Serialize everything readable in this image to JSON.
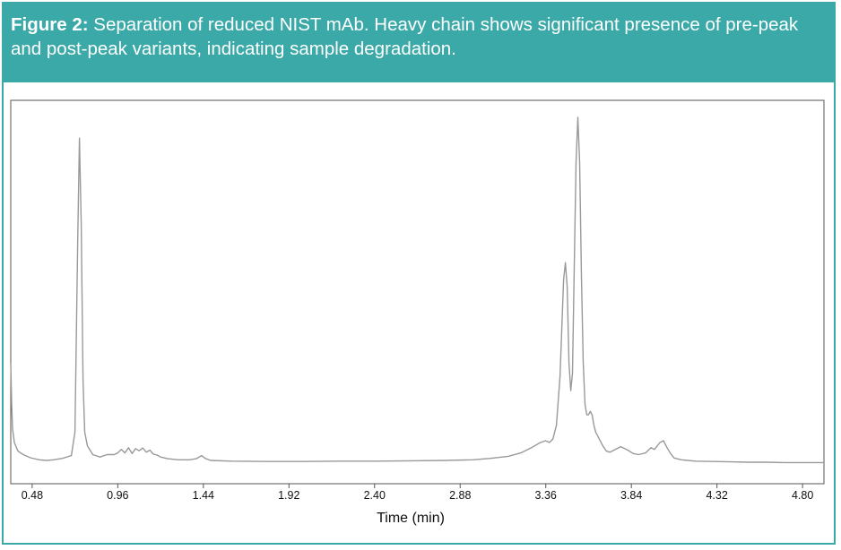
{
  "caption": {
    "label": "Figure 2:",
    "text": "Separation of reduced NIST mAb. Heavy chain shows significant presence of pre-peak and post-peak variants, indicating sample degradation."
  },
  "colors": {
    "accent": "#3aa9a8",
    "trace": "#999999",
    "axis": "#555555",
    "text": "#111111"
  },
  "chart_data": {
    "type": "line",
    "title": "",
    "xlabel": "Time (min)",
    "ylabel": "",
    "xlim": [
      0.36,
      4.92
    ],
    "ylim": [
      0,
      100
    ],
    "grid": false,
    "xticks": [
      0.48,
      0.96,
      1.44,
      1.92,
      2.4,
      2.88,
      3.36,
      3.84,
      4.32,
      4.8
    ],
    "xtick_labels": [
      "0.48",
      "0.96",
      "1.44",
      "1.92",
      "2.40",
      "2.88",
      "3.36",
      "3.84",
      "4.32",
      "4.80"
    ],
    "series": [
      {
        "name": "Reduced NIST mAb",
        "x": [
          0.36,
          0.365,
          0.37,
          0.38,
          0.4,
          0.43,
          0.47,
          0.52,
          0.56,
          0.6,
          0.65,
          0.7,
          0.72,
          0.735,
          0.745,
          0.755,
          0.765,
          0.775,
          0.79,
          0.82,
          0.86,
          0.9,
          0.94,
          0.96,
          0.98,
          1.0,
          1.02,
          1.04,
          1.06,
          1.08,
          1.1,
          1.12,
          1.14,
          1.16,
          1.18,
          1.2,
          1.24,
          1.3,
          1.36,
          1.4,
          1.43,
          1.45,
          1.48,
          1.6,
          1.8,
          2.0,
          2.2,
          2.4,
          2.6,
          2.8,
          2.95,
          3.05,
          3.15,
          3.22,
          3.28,
          3.33,
          3.36,
          3.38,
          3.4,
          3.42,
          3.44,
          3.46,
          3.47,
          3.48,
          3.49,
          3.5,
          3.51,
          3.52,
          3.53,
          3.54,
          3.55,
          3.56,
          3.57,
          3.58,
          3.59,
          3.6,
          3.61,
          3.62,
          3.63,
          3.64,
          3.66,
          3.68,
          3.7,
          3.72,
          3.75,
          3.78,
          3.82,
          3.85,
          3.88,
          3.92,
          3.95,
          3.97,
          4.0,
          4.02,
          4.04,
          4.06,
          4.08,
          4.12,
          4.2,
          4.3,
          4.4,
          4.5,
          4.6,
          4.7,
          4.8,
          4.92
        ],
        "values": [
          30,
          18,
          11,
          7,
          4.5,
          3.5,
          2.6,
          2.0,
          1.8,
          2.0,
          2.4,
          3.2,
          10,
          64,
          95,
          70,
          25,
          10,
          6,
          3.5,
          2.8,
          3.5,
          3.5,
          4.0,
          5.0,
          4.0,
          5.5,
          3.8,
          5.2,
          4.6,
          5.4,
          4.2,
          4.8,
          3.6,
          3.4,
          2.8,
          2.3,
          2.0,
          2.0,
          2.3,
          3.2,
          2.4,
          1.8,
          1.6,
          1.5,
          1.5,
          1.6,
          1.6,
          1.7,
          1.8,
          2.0,
          2.4,
          3.0,
          4.0,
          5.5,
          7.0,
          7.5,
          7.0,
          8.0,
          12,
          26,
          54,
          59,
          52,
          30,
          22,
          27,
          58,
          88,
          101,
          88,
          55,
          30,
          18,
          15,
          15,
          16,
          15,
          12,
          10,
          8,
          6,
          4.5,
          4.2,
          5.0,
          5.8,
          4.8,
          3.8,
          3.5,
          4.0,
          5.5,
          5.0,
          7.0,
          7.5,
          5.5,
          3.8,
          2.5,
          2.0,
          1.6,
          1.5,
          1.4,
          1.3,
          1.3,
          1.2,
          1.2,
          1.2
        ]
      }
    ]
  }
}
